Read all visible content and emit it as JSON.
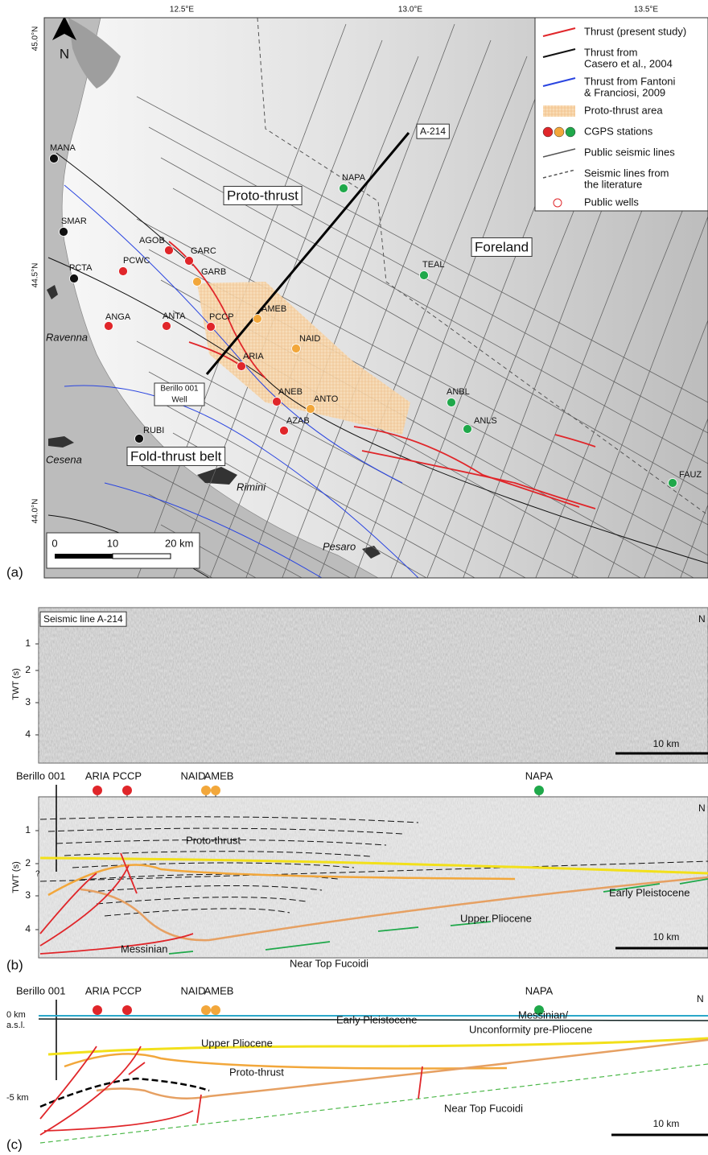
{
  "panel_a": {
    "label": "(a)",
    "lon_ticks": [
      "12.5°E",
      "13.0°E",
      "13.5°E"
    ],
    "lat_ticks": [
      "45.0°N",
      "44.5°N",
      "44.0°N"
    ],
    "north": "N",
    "legend": [
      {
        "lines": [
          "Thrust (present study)"
        ],
        "color": "#e0262a"
      },
      {
        "lines": [
          "Thrust from",
          "Casero et al., 2004"
        ],
        "color": "#111111"
      },
      {
        "lines": [
          "Thrust from Fantoni",
          "& Franciosi, 2009"
        ],
        "color": "#2a45e0"
      },
      {
        "lines": [
          "Proto-thrust area"
        ],
        "color": "#f5c48a"
      },
      {
        "lines": [
          "CGPS stations"
        ],
        "color": "#e0262a"
      },
      {
        "lines": [
          "Public seismic lines"
        ],
        "color": "#555555"
      },
      {
        "lines": [
          "Seismic lines from",
          "the literature"
        ],
        "color": "#555555"
      },
      {
        "lines": [
          "Public wells"
        ],
        "color": "#e0262a"
      }
    ],
    "stations": [
      {
        "name": "MANA",
        "color": "#111111"
      },
      {
        "name": "SMAR",
        "color": "#111111"
      },
      {
        "name": "PCTA",
        "color": "#111111"
      },
      {
        "name": "RUBI",
        "color": "#111111"
      },
      {
        "name": "AGOB",
        "color": "#e0262a"
      },
      {
        "name": "GARC",
        "color": "#e0262a"
      },
      {
        "name": "PCWC",
        "color": "#e0262a"
      },
      {
        "name": "GARB",
        "color": "#f2a73b"
      },
      {
        "name": "ANGA",
        "color": "#e0262a"
      },
      {
        "name": "ANTA",
        "color": "#e0262a"
      },
      {
        "name": "PCCP",
        "color": "#e0262a"
      },
      {
        "name": "AMEB",
        "color": "#f2a73b"
      },
      {
        "name": "NAID",
        "color": "#f2a73b"
      },
      {
        "name": "ARIA",
        "color": "#e0262a"
      },
      {
        "name": "ANEB",
        "color": "#e0262a"
      },
      {
        "name": "ANTO",
        "color": "#f2a73b"
      },
      {
        "name": "AZAB",
        "color": "#e0262a"
      },
      {
        "name": "NAPA",
        "color": "#1fa84a"
      },
      {
        "name": "TEAL",
        "color": "#1fa84a"
      },
      {
        "name": "ANBL",
        "color": "#1fa84a"
      },
      {
        "name": "ANLS",
        "color": "#1fa84a"
      },
      {
        "name": "FAUZ",
        "color": "#1fa84a"
      }
    ],
    "boxed_labels": [
      "Proto-thrust",
      "Foreland",
      "Fold-thrust belt",
      "A-214"
    ],
    "well_label": [
      "Berillo 001",
      "Well"
    ],
    "cities": [
      "Ravenna",
      "Cesena",
      "Rimini",
      "Pesaro"
    ],
    "scale": [
      "0",
      "10",
      "20 km"
    ]
  },
  "panel_b": {
    "label": "(b)",
    "section_title": "Seismic line A-214",
    "axis_title": "TWT (s)",
    "twt_ticks": [
      "1",
      "2",
      "3",
      "4"
    ],
    "end_label": "N",
    "scale": "10 km",
    "well": "Berillo 001",
    "stations": [
      {
        "name": "ARIA",
        "color": "#e0262a"
      },
      {
        "name": "PCCP",
        "color": "#e0262a"
      },
      {
        "name": "NAID",
        "color": "#f2a73b"
      },
      {
        "name": "AMEB",
        "color": "#f2a73b"
      },
      {
        "name": "NAPA",
        "color": "#1fa84a"
      }
    ],
    "horizons": [
      "Proto-thrust",
      "Upper Pliocene",
      "Early Pleistocene",
      "Messinian",
      "Near Top Fucoidi"
    ],
    "uncertain": "?"
  },
  "panel_c": {
    "label": "(c)",
    "depth_labels": [
      "0 km",
      "a.s.l.",
      "-5 km"
    ],
    "horizons": [
      "Upper Pliocene",
      "Early Pleistocene",
      "Messinian/",
      "Unconformity pre-Pliocene",
      "Proto-thrust",
      "Near Top Fucoidi"
    ],
    "scale": "10 km",
    "end_label": "N"
  }
}
